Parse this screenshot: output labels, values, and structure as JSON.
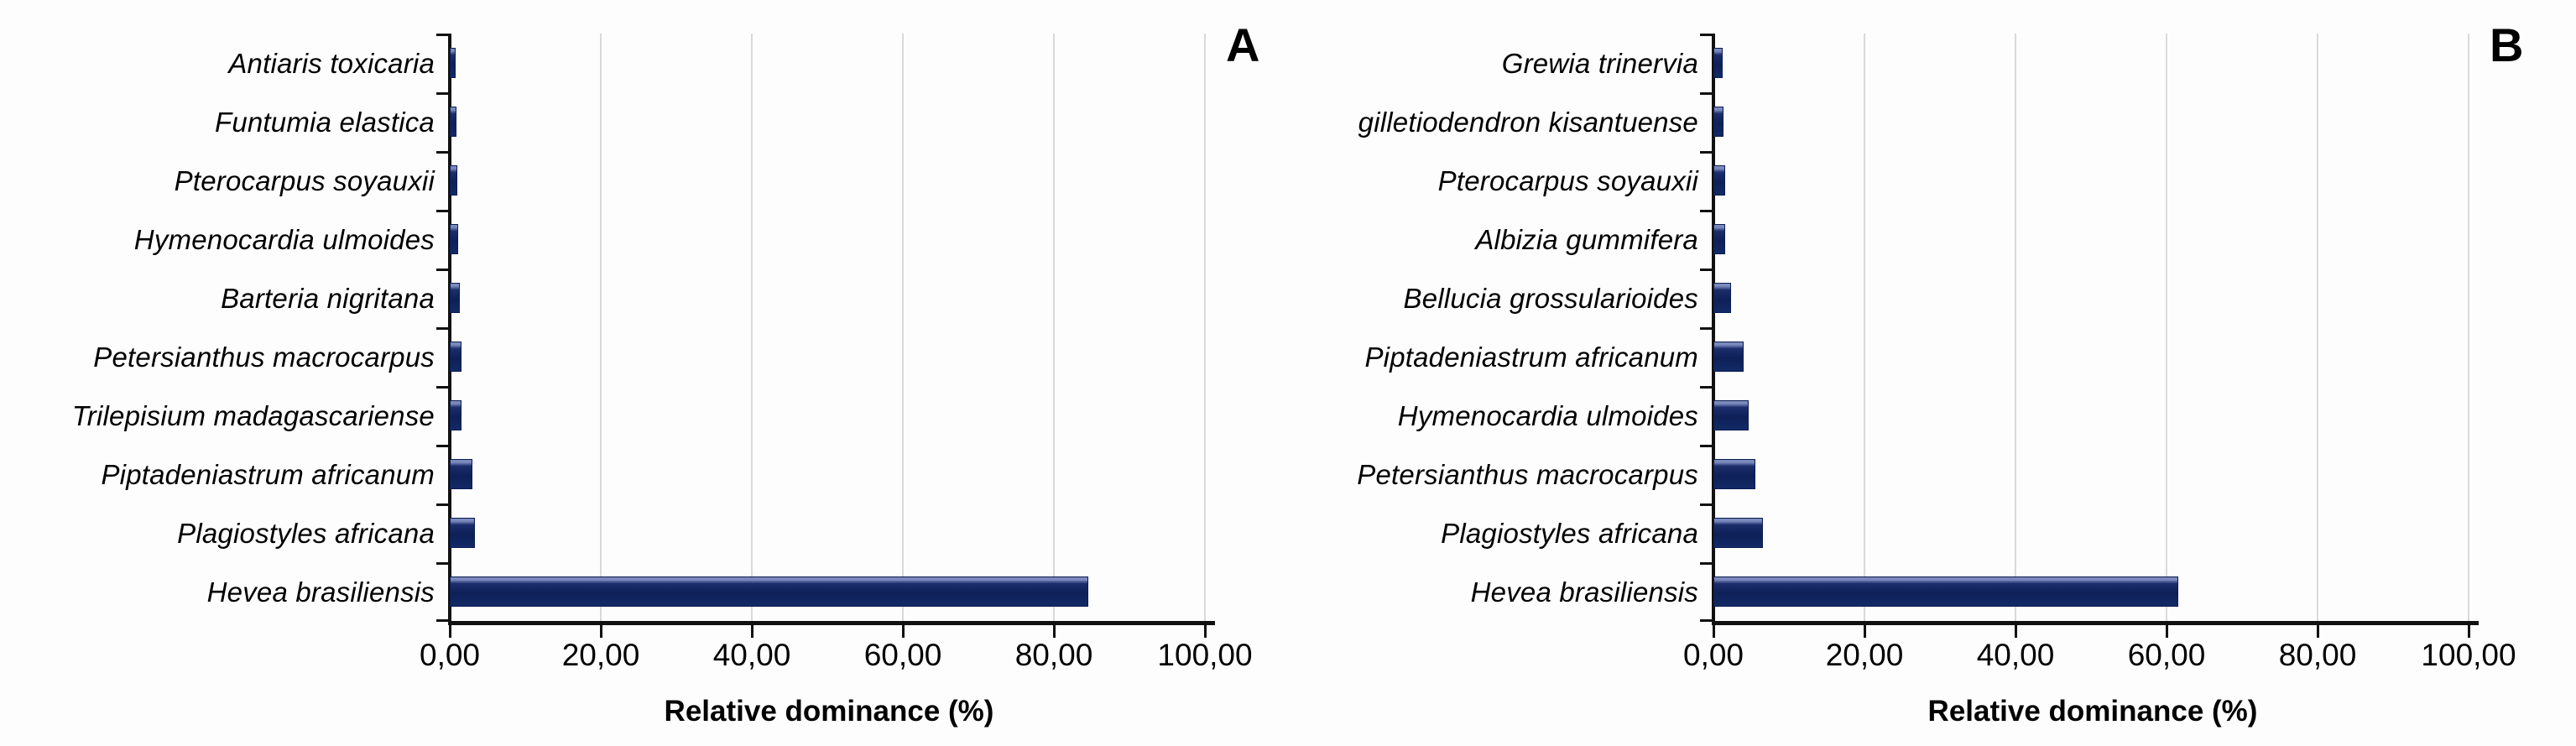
{
  "chart_data": [
    {
      "type": "bar",
      "orientation": "horizontal",
      "panel_label": "A",
      "categories": [
        "Antiaris toxicaria",
        "Funtumia elastica",
        "Pterocarpus soyauxii",
        "Hymenocardia ulmoides",
        "Barteria nigritana",
        "Petersianthus macrocarpus",
        "Trilepisium madagascariense",
        "Piptadeniastrum africanum",
        "Plagiostyles africana",
        "Hevea brasiliensis"
      ],
      "values": [
        0.8,
        0.9,
        1.0,
        1.1,
        1.3,
        1.5,
        1.6,
        3.0,
        3.3,
        84.5
      ],
      "xlabel": "Relative dominance (%)",
      "xlim": [
        0,
        100
      ],
      "x_tick_labels": [
        "0,00",
        "20,00",
        "40,00",
        "60,00",
        "80,00",
        "100,00"
      ],
      "grid": "vertical-gridlines-on",
      "legend": "none",
      "bar_color": "#112a66",
      "gridline_color": "#d9d9d9"
    },
    {
      "type": "bar",
      "orientation": "horizontal",
      "panel_label": "B",
      "categories": [
        "Grewia trinervia",
        "gilletiodendron kisantuense",
        "Pterocarpus soyauxii",
        "Albizia gummifera",
        "Bellucia grossularioides",
        "Piptadeniastrum africanum",
        "Hymenocardia ulmoides",
        "Petersianthus macrocarpus",
        "Plagiostyles africana",
        "Hevea brasiliensis"
      ],
      "values": [
        1.2,
        1.3,
        1.5,
        1.5,
        2.3,
        4.0,
        4.7,
        5.6,
        6.6,
        61.5
      ],
      "xlabel": "Relative dominance (%)",
      "xlim": [
        0,
        100
      ],
      "x_tick_labels": [
        "0,00",
        "20,00",
        "40,00",
        "60,00",
        "80,00",
        "100,00"
      ],
      "grid": "vertical-gridlines-on",
      "legend": "none",
      "bar_color": "#112a66",
      "gridline_color": "#d9d9d9"
    }
  ]
}
